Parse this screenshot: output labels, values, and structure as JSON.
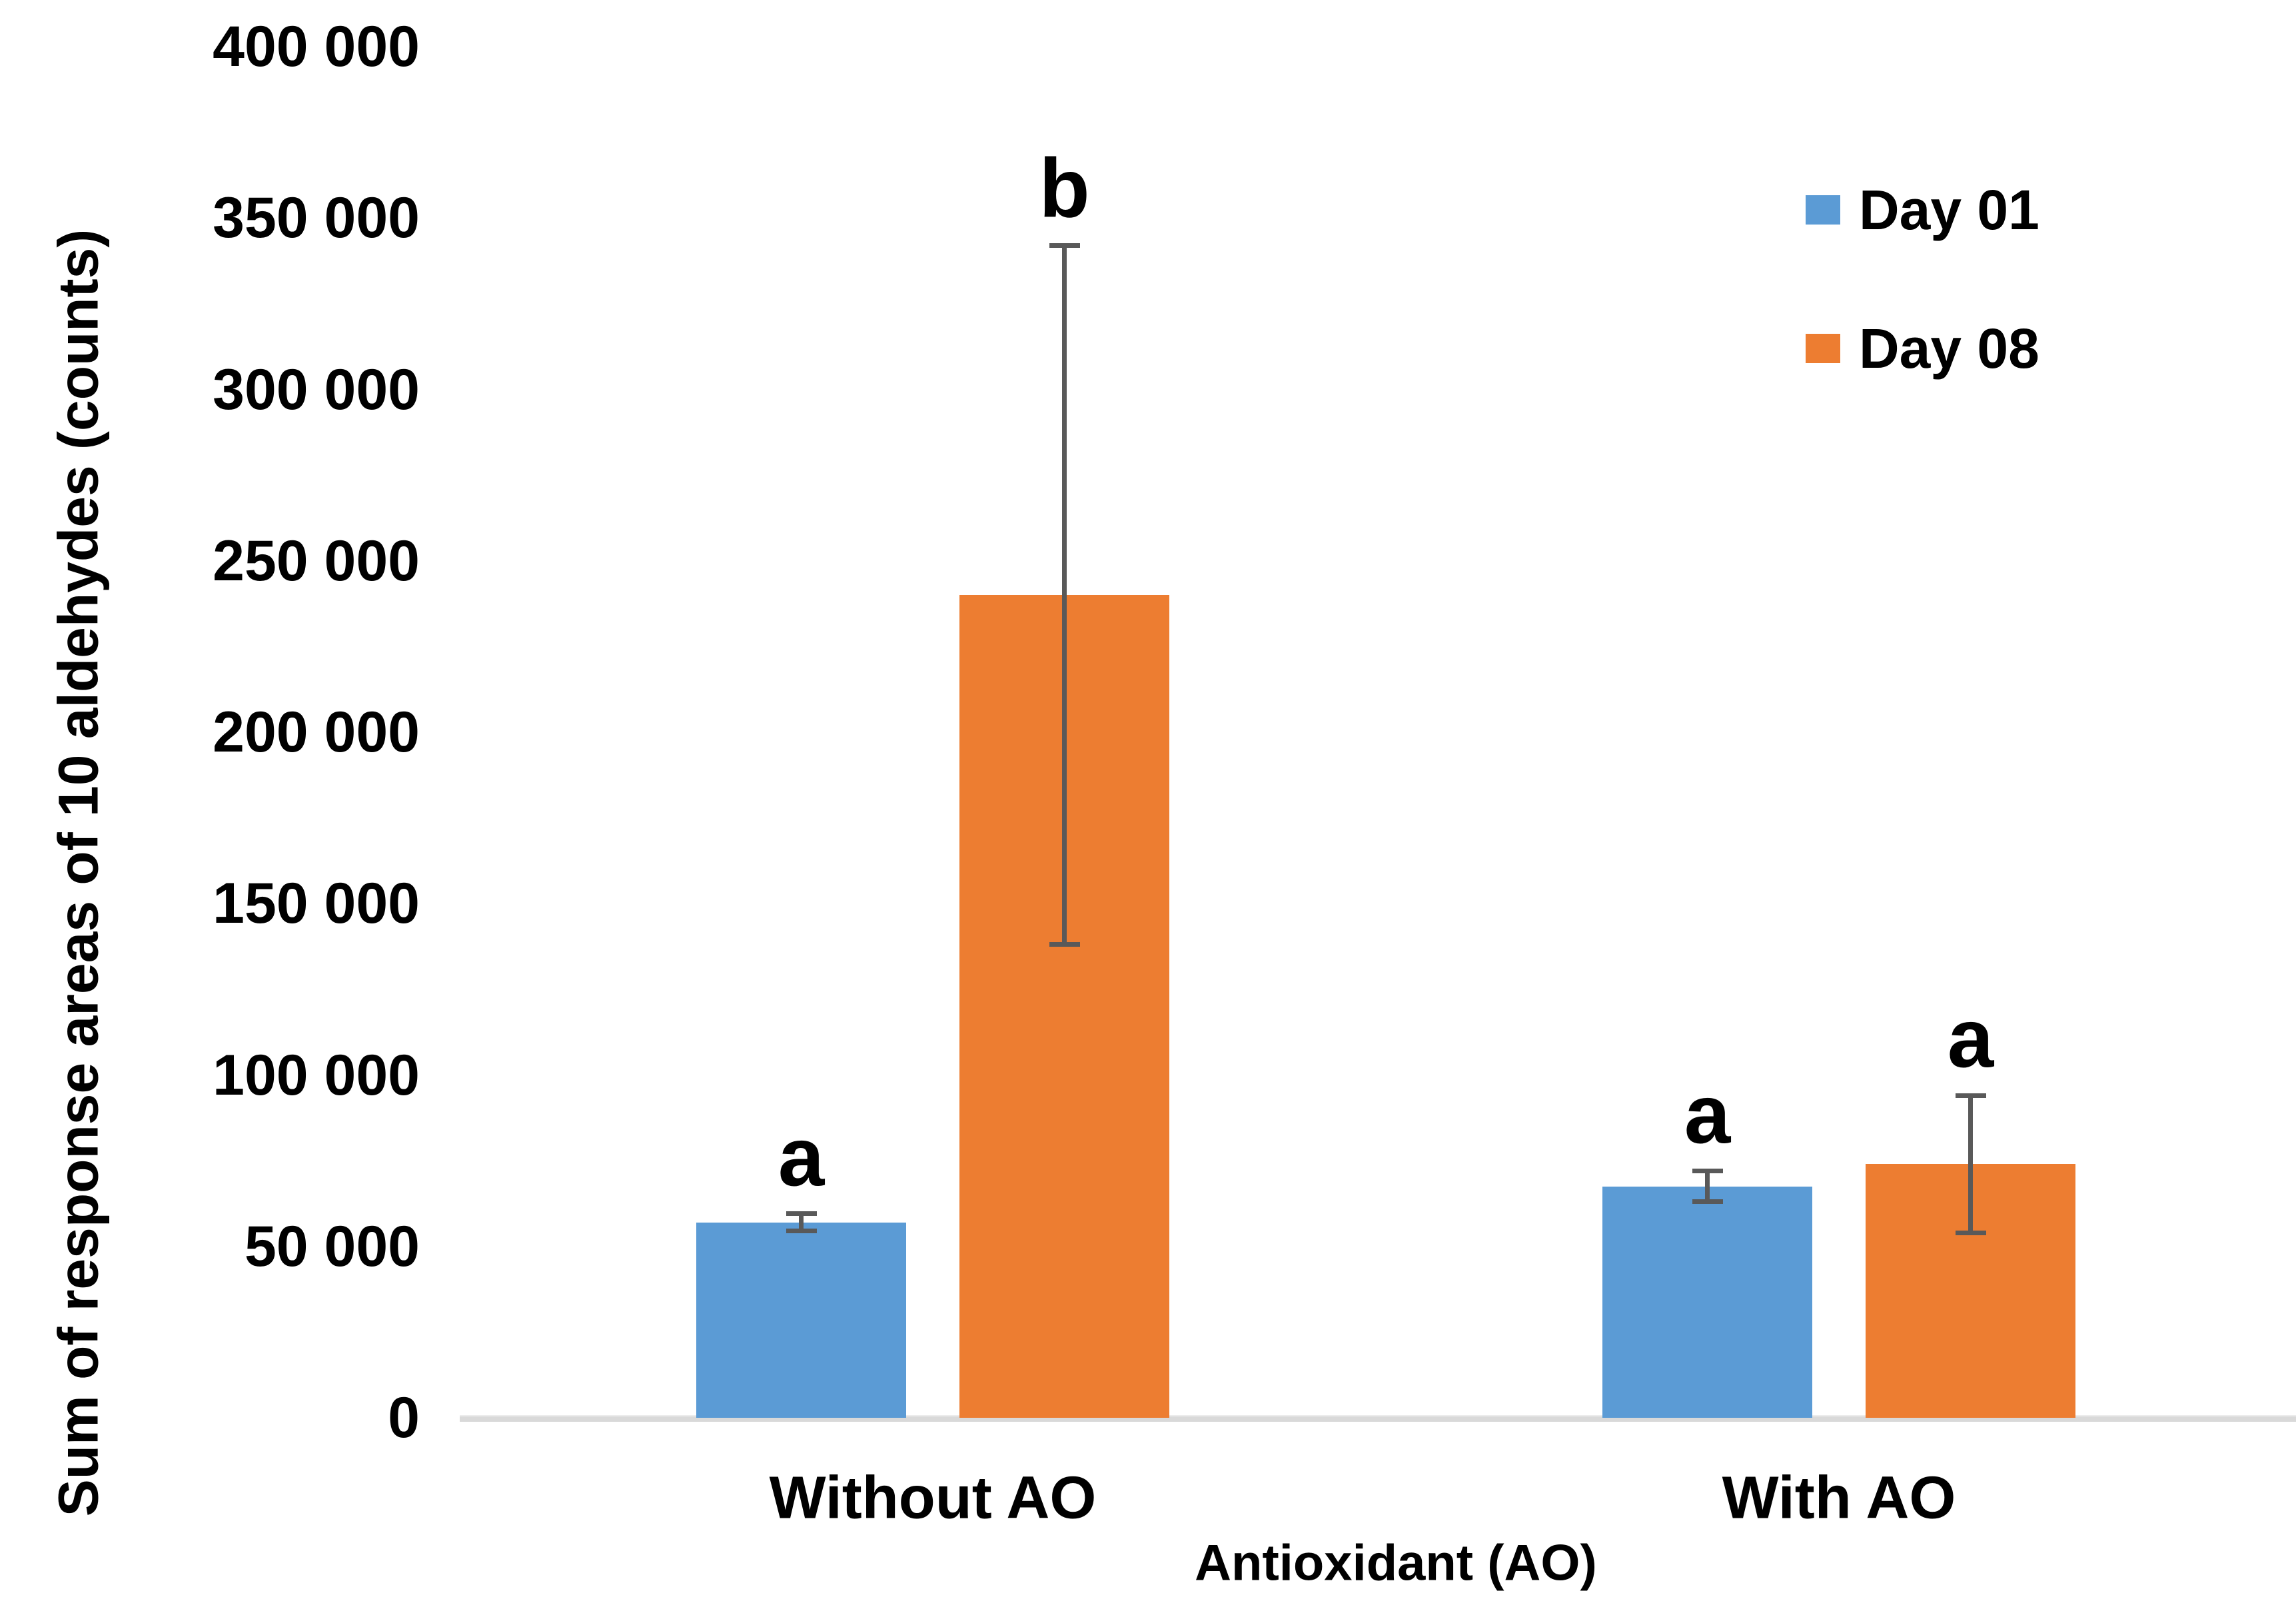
{
  "chart_data": {
    "type": "bar",
    "title": "",
    "xlabel": "Antioxidant (AO)",
    "ylabel": "Sum of response areas of 10 aldehydes (counts)",
    "categories": [
      "Without AO",
      "With AO"
    ],
    "series": [
      {
        "name": "Day 01",
        "color": "#5B9BD5",
        "values": [
          57000,
          67500
        ],
        "errors": [
          2500,
          4500
        ],
        "sig_labels": [
          "a",
          "a"
        ]
      },
      {
        "name": "Day 08",
        "color": "#ED7D31",
        "values": [
          240000,
          74000
        ],
        "errors": [
          102000,
          20000
        ],
        "sig_labels": [
          "b",
          "a"
        ]
      }
    ],
    "ylim": [
      0,
      400000
    ],
    "ytick_step": 50000,
    "ytick_labels": [
      "0",
      "50 000",
      "100 000",
      "150 000",
      "200 000",
      "250 000",
      "300 000",
      "350 000",
      "400 000"
    ],
    "legend_position": "top-right",
    "grid": false
  },
  "colors": {
    "error_bar": "#595959",
    "axis_line": "#D9D9D9",
    "text": "#000000",
    "background": "#FFFFFF"
  }
}
